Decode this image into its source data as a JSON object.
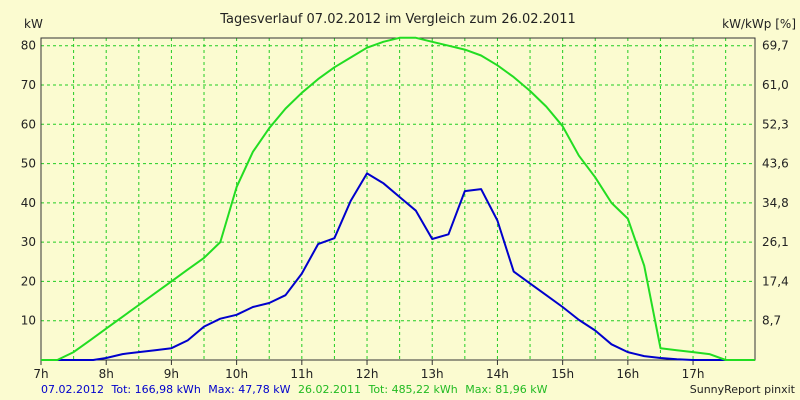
{
  "chart_data": {
    "type": "line",
    "title": "Tagesverlauf 07.02.2012 im Vergleich zum 26.02.2011",
    "ylabel": "kW",
    "ylabel_right": "kW/kWp [%]",
    "xlim": [
      7.0,
      17.95
    ],
    "ylim": [
      0,
      81.96
    ],
    "yticks": [
      10,
      20,
      30,
      40,
      50,
      60,
      70,
      80
    ],
    "yticks_right": [
      "8,7",
      "17,4",
      "26,1",
      "34,8",
      "43,6",
      "52,3",
      "61,0",
      "69,7"
    ],
    "xticks": [
      {
        "x": 7,
        "label": "7h"
      },
      {
        "x": 8,
        "label": "8h"
      },
      {
        "x": 9,
        "label": "9h"
      },
      {
        "x": 10,
        "label": "10h"
      },
      {
        "x": 11,
        "label": "11h"
      },
      {
        "x": 12,
        "label": "12h"
      },
      {
        "x": 13,
        "label": "13h"
      },
      {
        "x": 14,
        "label": "14h"
      },
      {
        "x": 15,
        "label": "15h"
      },
      {
        "x": 16,
        "label": "16h"
      },
      {
        "x": 17,
        "label": "17h"
      }
    ],
    "xgrid_minor_step": 0.5,
    "grid": true,
    "series": [
      {
        "name": "07.02.2012",
        "color": "#0000cc",
        "points": [
          [
            7.0,
            0
          ],
          [
            7.5,
            0
          ],
          [
            7.8,
            0
          ],
          [
            8.0,
            0.5
          ],
          [
            8.25,
            1.5
          ],
          [
            8.5,
            2
          ],
          [
            8.75,
            2.5
          ],
          [
            9.0,
            3
          ],
          [
            9.25,
            5
          ],
          [
            9.5,
            8.5
          ],
          [
            9.75,
            10.5
          ],
          [
            10.0,
            11.5
          ],
          [
            10.25,
            13.5
          ],
          [
            10.5,
            14.5
          ],
          [
            10.75,
            16.5
          ],
          [
            11.0,
            22
          ],
          [
            11.25,
            29.5
          ],
          [
            11.5,
            31
          ],
          [
            11.75,
            40.5
          ],
          [
            12.0,
            47.5
          ],
          [
            12.25,
            45
          ],
          [
            12.5,
            41.5
          ],
          [
            12.75,
            38
          ],
          [
            13.0,
            30.8
          ],
          [
            13.25,
            32
          ],
          [
            13.5,
            43
          ],
          [
            13.75,
            43.5
          ],
          [
            14.0,
            35.5
          ],
          [
            14.25,
            22.5
          ],
          [
            14.5,
            19.5
          ],
          [
            14.75,
            16.5
          ],
          [
            15.0,
            13.5
          ],
          [
            15.25,
            10.2
          ],
          [
            15.5,
            7.5
          ],
          [
            15.75,
            4
          ],
          [
            16.0,
            2
          ],
          [
            16.25,
            1
          ],
          [
            16.5,
            0.5
          ],
          [
            16.75,
            0.2
          ],
          [
            17.0,
            0
          ],
          [
            17.5,
            0
          ],
          [
            17.95,
            0
          ]
        ]
      },
      {
        "name": "26.02.2011",
        "color": "#22dd22",
        "points": [
          [
            7.0,
            0
          ],
          [
            7.25,
            0
          ],
          [
            7.5,
            2
          ],
          [
            7.75,
            5
          ],
          [
            8.0,
            8
          ],
          [
            8.25,
            11
          ],
          [
            8.5,
            14
          ],
          [
            8.75,
            17
          ],
          [
            9.0,
            20
          ],
          [
            9.25,
            23
          ],
          [
            9.5,
            26
          ],
          [
            9.75,
            30
          ],
          [
            10.0,
            44
          ],
          [
            10.25,
            53
          ],
          [
            10.5,
            59
          ],
          [
            10.75,
            64
          ],
          [
            11.0,
            68
          ],
          [
            11.25,
            71.5
          ],
          [
            11.5,
            74.5
          ],
          [
            11.75,
            77
          ],
          [
            12.0,
            79.5
          ],
          [
            12.25,
            81
          ],
          [
            12.5,
            82
          ],
          [
            12.75,
            82
          ],
          [
            13.0,
            81
          ],
          [
            13.25,
            80
          ],
          [
            13.5,
            79
          ],
          [
            13.75,
            77.5
          ],
          [
            14.0,
            75
          ],
          [
            14.25,
            72
          ],
          [
            14.5,
            68.5
          ],
          [
            14.75,
            64.5
          ],
          [
            15.0,
            59.5
          ],
          [
            15.25,
            52
          ],
          [
            15.5,
            46.5
          ],
          [
            15.75,
            40
          ],
          [
            16.0,
            36
          ],
          [
            16.25,
            24
          ],
          [
            16.5,
            3
          ],
          [
            16.75,
            2.5
          ],
          [
            17.0,
            2
          ],
          [
            17.25,
            1.5
          ],
          [
            17.5,
            0
          ],
          [
            17.95,
            0
          ]
        ]
      }
    ],
    "footer": {
      "series1_date": "07.02.2012",
      "series1_tot": "Tot: 166,98 kWh",
      "series1_max": "Max: 47,78 kW",
      "series2_date": "26.02.2011",
      "series2_tot": "Tot: 485,22 kWh",
      "series2_max": "Max: 81,96 kW",
      "brand": "SunnyReport pinxit"
    }
  }
}
